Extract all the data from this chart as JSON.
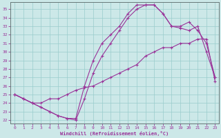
{
  "xlabel": "Windchill (Refroidissement éolien,°C)",
  "bg_color": "#cce8e8",
  "line_color": "#993399",
  "grid_color": "#99cccc",
  "xlim_min": -0.5,
  "xlim_max": 23.4,
  "ylim_min": 21.6,
  "ylim_max": 35.8,
  "yticks": [
    22,
    23,
    24,
    25,
    26,
    27,
    28,
    29,
    30,
    31,
    32,
    33,
    34,
    35
  ],
  "xticks": [
    0,
    1,
    2,
    3,
    4,
    5,
    6,
    7,
    8,
    9,
    10,
    11,
    12,
    13,
    14,
    15,
    16,
    17,
    18,
    19,
    20,
    21,
    22,
    23
  ],
  "curve1_x": [
    0,
    1,
    2,
    3,
    4,
    5,
    6,
    7,
    8,
    9,
    10,
    11,
    12,
    13,
    14,
    15,
    16,
    17,
    18,
    19,
    20,
    21,
    22,
    23
  ],
  "curve1_y": [
    25.0,
    24.5,
    24.0,
    24.0,
    24.5,
    24.5,
    25.0,
    25.5,
    25.8,
    26.0,
    26.5,
    27.0,
    27.5,
    28.0,
    28.5,
    29.5,
    30.0,
    30.5,
    30.5,
    31.0,
    31.0,
    31.5,
    31.5,
    26.5
  ],
  "curve2_x": [
    0,
    1,
    2,
    3,
    4,
    5,
    6,
    7,
    8,
    9,
    10,
    11,
    12,
    13,
    14,
    15,
    16,
    17,
    18,
    19,
    20,
    21,
    22,
    23
  ],
  "curve2_y": [
    25.0,
    24.5,
    24.0,
    23.5,
    23.0,
    22.5,
    22.2,
    22.2,
    26.0,
    29.0,
    31.0,
    32.0,
    33.0,
    34.5,
    35.5,
    35.5,
    35.5,
    34.5,
    33.0,
    33.0,
    33.5,
    32.5,
    31.0,
    27.0
  ],
  "curve3_x": [
    0,
    1,
    2,
    3,
    4,
    5,
    6,
    7,
    8,
    9,
    10,
    11,
    12,
    13,
    14,
    15,
    16,
    17,
    18,
    19,
    20,
    21,
    22,
    23
  ],
  "curve3_y": [
    25.0,
    24.5,
    24.0,
    23.5,
    23.0,
    22.5,
    22.2,
    22.0,
    24.5,
    27.5,
    29.5,
    31.0,
    32.5,
    34.0,
    35.0,
    35.5,
    35.5,
    34.5,
    33.0,
    32.8,
    32.5,
    33.0,
    30.0,
    27.0
  ]
}
